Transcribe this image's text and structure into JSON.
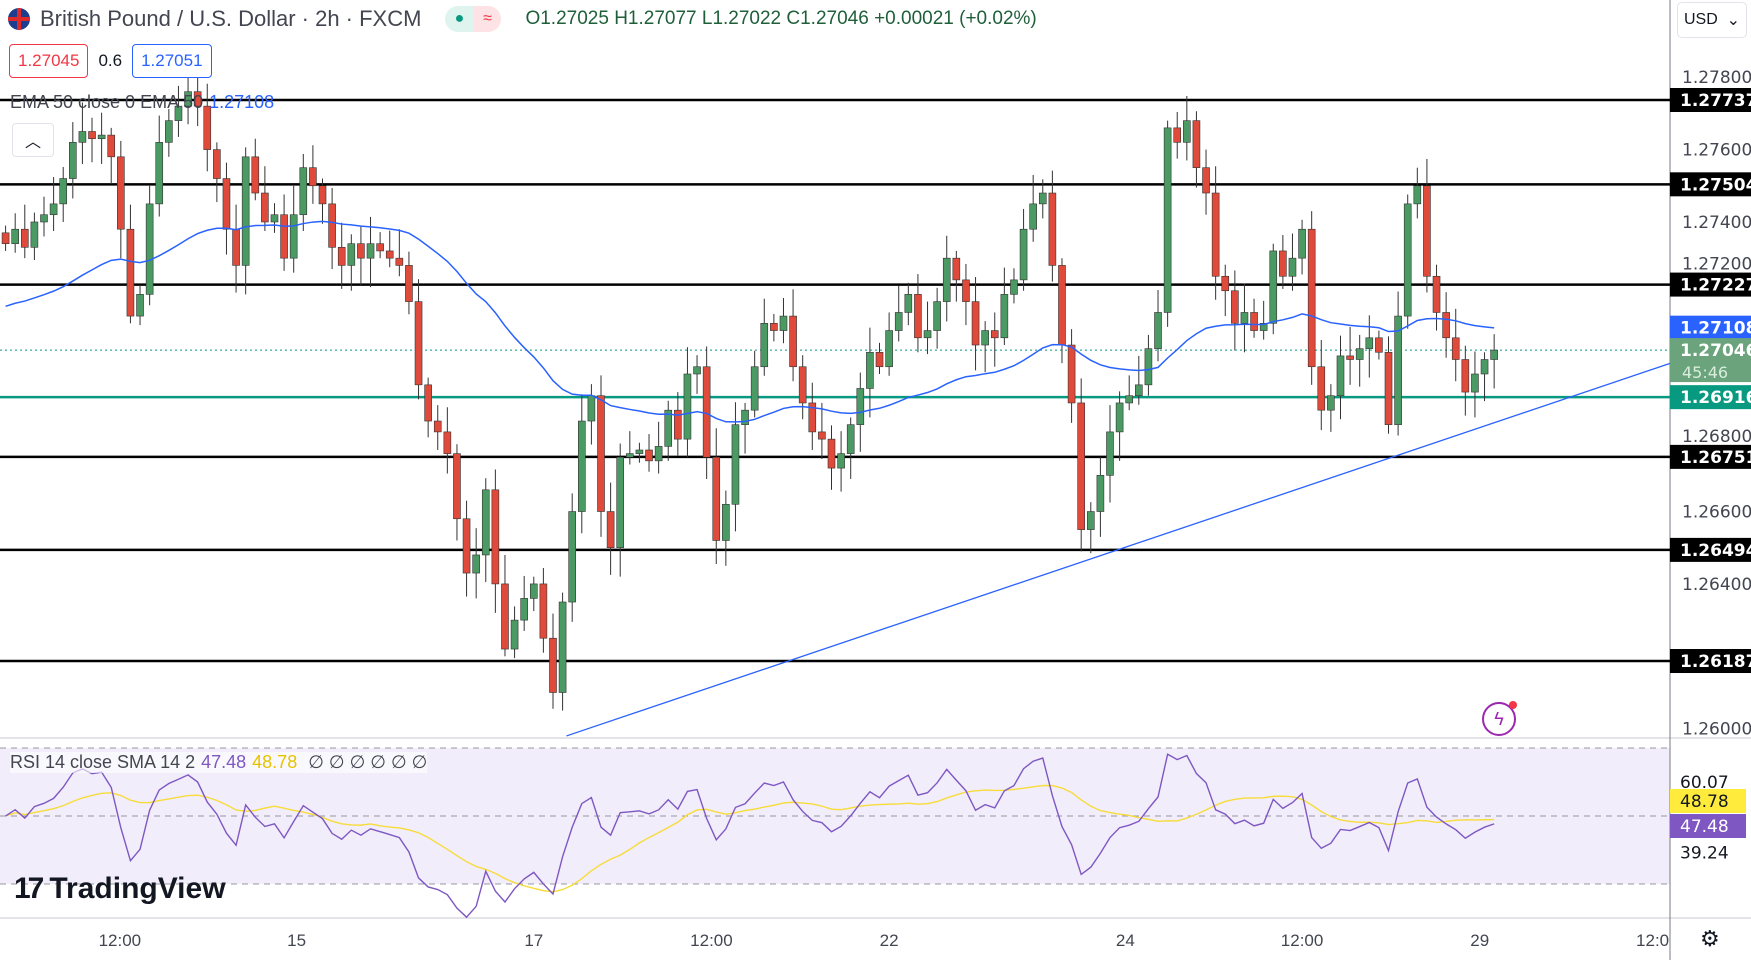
{
  "header": {
    "symbol": "British Pound / U.S. Dollar · 2h · FXCM",
    "ohlc": "O1.27025 H1.27077 L1.27022 C1.27046 +0.00021 (+0.02%)",
    "market_status_icon": "market-open-dot",
    "delay_icon": "approx-icon"
  },
  "quote": {
    "bid": "1.27045",
    "spread": "0.6",
    "ask": "1.27051"
  },
  "ema": {
    "label": "EMA 50 close 0 EMA 50",
    "value": "1.27108"
  },
  "currency": "USD",
  "rsi": {
    "label": "RSI 14 close SMA 14 2",
    "rsi_value": "47.48",
    "sma_value": "48.78",
    "empty": "∅ ∅ ∅ ∅ ∅ ∅",
    "axis_labels": [
      "60.07",
      "39.24"
    ]
  },
  "branding": "TradingView",
  "colors": {
    "up": "#089981",
    "up_candle": "#4c9a63",
    "down": "#e04a3a",
    "ema": "#2962ff",
    "rsi": "#7e57c2",
    "rsi_sma": "#f7dc3a",
    "support": "#089981"
  },
  "chart_data": {
    "type": "candlestick",
    "price_axis_ticks": [
      "1.27800",
      "1.27600",
      "1.27400",
      "1.27200",
      "1.26800",
      "1.26600",
      "1.26400",
      "1.26000"
    ],
    "time_labels": [
      {
        "label": "12:00",
        "index": 11.9
      },
      {
        "label": "15",
        "index": 30.3
      },
      {
        "label": "17",
        "index": 55
      },
      {
        "label": "12:00",
        "index": 73.5
      },
      {
        "label": "22",
        "index": 92
      },
      {
        "label": "24",
        "index": 116.6
      },
      {
        "label": "12:00",
        "index": 135
      },
      {
        "label": "29",
        "index": 153.5
      },
      {
        "label": "12:0",
        "index": 171.5
      }
    ],
    "horizontal_levels": [
      "1.27737",
      "1.27504",
      "1.27227",
      "1.26751",
      "1.26494",
      "1.26187"
    ],
    "support_level": "1.26916",
    "last_price": "1.27046",
    "countdown": "45:46",
    "trendline": {
      "from": [
        58.4,
        1.2598
      ],
      "to": [
        173.4,
        1.2701
      ]
    },
    "closes": [
      1.2734,
      1.2738,
      1.2733,
      1.274,
      1.2742,
      1.2745,
      1.2752,
      1.2762,
      1.2765,
      1.2763,
      1.2764,
      1.2758,
      1.2738,
      1.2714,
      1.272,
      1.2745,
      1.2762,
      1.2768,
      1.2772,
      1.2776,
      1.2772,
      1.276,
      1.2752,
      1.2738,
      1.2728,
      1.2758,
      1.2748,
      1.274,
      1.2742,
      1.273,
      1.2742,
      1.2755,
      1.275,
      1.2745,
      1.2733,
      1.2728,
      1.2734,
      1.273,
      1.2734,
      1.2732,
      1.273,
      1.2728,
      1.2718,
      1.2695,
      1.2685,
      1.2682,
      1.2676,
      1.2658,
      1.2643,
      1.2648,
      1.2666,
      1.264,
      1.2622,
      1.263,
      1.2636,
      1.264,
      1.2625,
      1.261,
      1.2635,
      1.266,
      1.2685,
      1.2692,
      1.266,
      1.265,
      1.2675,
      1.2676,
      1.2677,
      1.2674,
      1.2678,
      1.2688,
      1.268,
      1.2698,
      1.27,
      1.2675,
      1.2652,
      1.2662,
      1.2684,
      1.2688,
      1.27,
      1.2712,
      1.271,
      1.2714,
      1.27,
      1.269,
      1.2682,
      1.268,
      1.2672,
      1.2676,
      1.2684,
      1.2694,
      1.2704,
      1.27,
      1.271,
      1.2715,
      1.272,
      1.2708,
      1.271,
      1.2718,
      1.273,
      1.2724,
      1.2718,
      1.2706,
      1.271,
      1.2708,
      1.272,
      1.2724,
      1.2738,
      1.2745,
      1.2748,
      1.2728,
      1.2706,
      1.269,
      1.2655,
      1.266,
      1.267,
      1.2682,
      1.269,
      1.2692,
      1.2695,
      1.2705,
      1.2715,
      1.2766,
      1.2762,
      1.2768,
      1.2755,
      1.2748,
      1.2725,
      1.2721,
      1.2712,
      1.2715,
      1.271,
      1.2712,
      1.2732,
      1.2725,
      1.273,
      1.2738,
      1.27,
      1.2688,
      1.2692,
      1.2703,
      1.2702,
      1.2705,
      1.2708,
      1.2704,
      1.2684,
      1.2714,
      1.2745,
      1.275,
      1.2725,
      1.2715,
      1.2708,
      1.2702,
      1.2693,
      1.2698,
      1.2702,
      1.27046
    ],
    "rsi_range": [
      0,
      100
    ],
    "rsi_bands": [
      70,
      50,
      30
    ]
  }
}
